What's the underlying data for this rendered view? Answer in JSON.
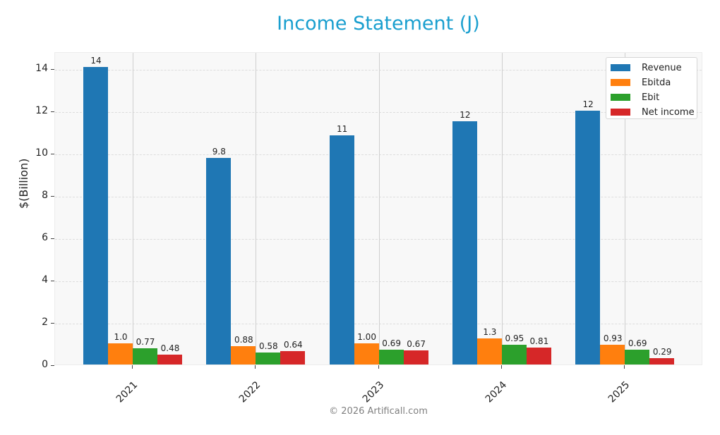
{
  "title": "Income Statement (J)",
  "footer": "© 2026 Artificall.com",
  "colors": {
    "title": "#1a9fcf",
    "Revenue": "#1f77b4",
    "Ebitda": "#ff7f0e",
    "Ebit": "#2ca02c",
    "Net income": "#d62728"
  },
  "legend": [
    "Revenue",
    "Ebitda",
    "Ebit",
    "Net income"
  ],
  "yaxis": {
    "label": "$(Billion)",
    "ticks": [
      "0",
      "2",
      "4",
      "6",
      "8",
      "10",
      "12",
      "14"
    ]
  },
  "xaxis": {
    "ticks": [
      "2021",
      "2022",
      "2023",
      "2024",
      "2025"
    ]
  },
  "bar_labels": {
    "2021": [
      "14",
      "1.0",
      "0.77",
      "0.48"
    ],
    "2022": [
      "9.8",
      "0.88",
      "0.58",
      "0.64"
    ],
    "2023": [
      "11",
      "1.00",
      "0.69",
      "0.67"
    ],
    "2024": [
      "12",
      "1.3",
      "0.95",
      "0.81"
    ],
    "2025": [
      "12",
      "0.93",
      "0.69",
      "0.29"
    ]
  },
  "chart_data": {
    "type": "bar",
    "title": "Income Statement (J)",
    "xlabel": "",
    "ylabel": "$(Billion)",
    "ylim": [
      0,
      14.8
    ],
    "grid": true,
    "legend_position": "upper right",
    "categories": [
      "2021",
      "2022",
      "2023",
      "2024",
      "2025"
    ],
    "series": [
      {
        "name": "Revenue",
        "values": [
          14.07,
          9.77,
          10.83,
          11.5,
          12.0
        ]
      },
      {
        "name": "Ebitda",
        "values": [
          1.0,
          0.88,
          1.0,
          1.25,
          0.93
        ]
      },
      {
        "name": "Ebit",
        "values": [
          0.77,
          0.58,
          0.69,
          0.95,
          0.69
        ]
      },
      {
        "name": "Net income",
        "values": [
          0.48,
          0.64,
          0.67,
          0.81,
          0.29
        ]
      }
    ]
  }
}
